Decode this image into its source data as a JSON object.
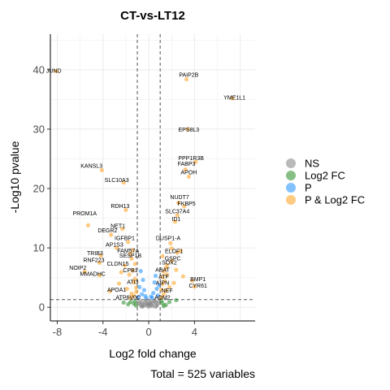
{
  "chart_data": {
    "type": "scatter",
    "title": "CT-vs-LT12",
    "xlabel": "Log2 fold change",
    "ylabel": "-Log10 pvalue",
    "caption": "Total = 525 variables",
    "xlim": [
      -8.6,
      9.3
    ],
    "ylim": [
      -2.3,
      46.0
    ],
    "xticks": [
      -8,
      -4,
      0,
      4
    ],
    "yticks": [
      0,
      10,
      20,
      30,
      40
    ],
    "fc_cutoff": [
      -1,
      1
    ],
    "p_cutoff": 1.3,
    "grid": true,
    "legend_position": "right",
    "legend": [
      {
        "key": "NS",
        "label": "NS",
        "color": "#808080"
      },
      {
        "key": "L2",
        "label": "Log2 FC",
        "color": "#228B22"
      },
      {
        "key": "P",
        "label": "P",
        "color": "#1E90FF"
      },
      {
        "key": "PL",
        "label": "P & Log2 FC",
        "color": "#FF9F1C"
      }
    ],
    "labels": [
      {
        "text": "JUND",
        "x": -8.3,
        "y": 39.5
      },
      {
        "text": "PAIP2B",
        "x": 3.5,
        "y": 38.8
      },
      {
        "text": "YME1L1",
        "x": 7.5,
        "y": 35.0
      },
      {
        "text": "EPS8L3",
        "x": 3.5,
        "y": 29.6
      },
      {
        "text": "PPP1R3B",
        "x": 3.7,
        "y": 24.8
      },
      {
        "text": "FABP3",
        "x": 3.3,
        "y": 23.8
      },
      {
        "text": "KANSL3",
        "x": -5.0,
        "y": 23.5
      },
      {
        "text": "APOH",
        "x": 3.5,
        "y": 22.4
      },
      {
        "text": "SLC10A3",
        "x": -2.8,
        "y": 21.1
      },
      {
        "text": "NUDT7",
        "x": 2.7,
        "y": 18.2
      },
      {
        "text": "FKBP5",
        "x": 3.3,
        "y": 17.1
      },
      {
        "text": "RDH13",
        "x": -2.5,
        "y": 16.7
      },
      {
        "text": "SLC37A4",
        "x": 2.5,
        "y": 15.8
      },
      {
        "text": "PROM1A",
        "x": -5.6,
        "y": 15.5
      },
      {
        "text": "ID1",
        "x": 2.4,
        "y": 14.5
      },
      {
        "text": "NET1",
        "x": -2.7,
        "y": 13.4
      },
      {
        "text": "DEGR2",
        "x": -3.6,
        "y": 12.6
      },
      {
        "text": "IGFBP1",
        "x": -2.1,
        "y": 11.3
      },
      {
        "text": "DUSP1-A",
        "x": 1.7,
        "y": 11.3
      },
      {
        "text": "AP1S3",
        "x": -3.0,
        "y": 10.2
      },
      {
        "text": "FAM57A",
        "x": -1.8,
        "y": 9.2
      },
      {
        "text": "ELOF1",
        "x": 2.2,
        "y": 9.1
      },
      {
        "text": "TRIB3",
        "x": -4.7,
        "y": 8.8
      },
      {
        "text": "SESP1B",
        "x": -1.6,
        "y": 8.4
      },
      {
        "text": "GSPC",
        "x": 2.1,
        "y": 7.9
      },
      {
        "text": "RNF223",
        "x": -4.8,
        "y": 7.6
      },
      {
        "text": "SOX2",
        "x": 1.8,
        "y": 7.2
      },
      {
        "text": "CLDN15",
        "x": -2.7,
        "y": 7.0
      },
      {
        "text": "NOIP2",
        "x": -6.2,
        "y": 6.3
      },
      {
        "text": "CPB1",
        "x": -1.6,
        "y": 5.9
      },
      {
        "text": "ABAT",
        "x": 1.2,
        "y": 6.0
      },
      {
        "text": "MMADHC",
        "x": -4.9,
        "y": 5.3
      },
      {
        "text": "ATF",
        "x": 1.3,
        "y": 4.8
      },
      {
        "text": "BMP1",
        "x": 4.3,
        "y": 4.4
      },
      {
        "text": "ATI3",
        "x": -1.4,
        "y": 3.9
      },
      {
        "text": "AIPN",
        "x": 1.2,
        "y": 3.8
      },
      {
        "text": "CYR61",
        "x": 4.3,
        "y": 3.3
      },
      {
        "text": "APOA1",
        "x": -2.8,
        "y": 2.6
      },
      {
        "text": "NEF",
        "x": 1.6,
        "y": 2.5
      },
      {
        "text": "ATP6V0C",
        "x": -1.8,
        "y": 1.3
      },
      {
        "text": "ADM2",
        "x": 1.2,
        "y": 1.3
      }
    ],
    "points": [
      {
        "x": -8.1,
        "y": 39.8,
        "c": "PL"
      },
      {
        "x": 3.3,
        "y": 38.4,
        "c": "PL"
      },
      {
        "x": 7.3,
        "y": 35.2,
        "c": "PL"
      },
      {
        "x": 3.4,
        "y": 30.0,
        "c": "PL"
      },
      {
        "x": 4.1,
        "y": 24.5,
        "c": "PL"
      },
      {
        "x": 3.2,
        "y": 23.2,
        "c": "PL"
      },
      {
        "x": -4.1,
        "y": 23.1,
        "c": "PL"
      },
      {
        "x": 3.5,
        "y": 22.0,
        "c": "PL"
      },
      {
        "x": -2.2,
        "y": 21.0,
        "c": "PL"
      },
      {
        "x": 2.6,
        "y": 17.6,
        "c": "PL"
      },
      {
        "x": 3.1,
        "y": 17.0,
        "c": "PL"
      },
      {
        "x": -2.0,
        "y": 16.4,
        "c": "PL"
      },
      {
        "x": 2.5,
        "y": 15.5,
        "c": "PL"
      },
      {
        "x": -5.3,
        "y": 13.8,
        "c": "PL"
      },
      {
        "x": 2.3,
        "y": 14.4,
        "c": "PL"
      },
      {
        "x": -2.3,
        "y": 13.2,
        "c": "PL"
      },
      {
        "x": -3.3,
        "y": 12.2,
        "c": "PL"
      },
      {
        "x": -1.8,
        "y": 11.0,
        "c": "PL"
      },
      {
        "x": 1.9,
        "y": 10.8,
        "c": "PL"
      },
      {
        "x": -2.8,
        "y": 10.0,
        "c": "PL"
      },
      {
        "x": 2.0,
        "y": 9.9,
        "c": "PL"
      },
      {
        "x": 2.5,
        "y": 9.2,
        "c": "PL"
      },
      {
        "x": -1.6,
        "y": 9.0,
        "c": "PL"
      },
      {
        "x": -4.2,
        "y": 8.7,
        "c": "PL"
      },
      {
        "x": 2.8,
        "y": 9.5,
        "c": "PL"
      },
      {
        "x": -1.5,
        "y": 8.2,
        "c": "PL"
      },
      {
        "x": 2.0,
        "y": 7.8,
        "c": "PL"
      },
      {
        "x": -4.3,
        "y": 7.5,
        "c": "PL"
      },
      {
        "x": 1.6,
        "y": 7.1,
        "c": "PL"
      },
      {
        "x": -2.1,
        "y": 7.0,
        "c": "PL"
      },
      {
        "x": -5.6,
        "y": 6.0,
        "c": "PL"
      },
      {
        "x": -1.4,
        "y": 6.2,
        "c": "PL"
      },
      {
        "x": 1.3,
        "y": 6.0,
        "c": "PL"
      },
      {
        "x": -4.3,
        "y": 5.4,
        "c": "PL"
      },
      {
        "x": 1.2,
        "y": 5.1,
        "c": "PL"
      },
      {
        "x": 3.8,
        "y": 4.5,
        "c": "PL"
      },
      {
        "x": -1.3,
        "y": 4.2,
        "c": "PL"
      },
      {
        "x": 1.2,
        "y": 3.9,
        "c": "PL"
      },
      {
        "x": 4.0,
        "y": 3.5,
        "c": "PL"
      },
      {
        "x": -3.4,
        "y": 2.7,
        "c": "PL"
      },
      {
        "x": 1.5,
        "y": 2.8,
        "c": "PL"
      },
      {
        "x": -1.6,
        "y": 1.6,
        "c": "PL"
      },
      {
        "x": 1.1,
        "y": 1.6,
        "c": "PL"
      },
      {
        "x": -1.2,
        "y": 4.8,
        "c": "PL"
      },
      {
        "x": -1.1,
        "y": 3.3,
        "c": "PL"
      },
      {
        "x": -1.5,
        "y": 2.3,
        "c": "PL"
      },
      {
        "x": -1.3,
        "y": 1.9,
        "c": "PL"
      },
      {
        "x": -1.9,
        "y": 3.1,
        "c": "PL"
      },
      {
        "x": -1.7,
        "y": 5.5,
        "c": "PL"
      },
      {
        "x": -2.4,
        "y": 5.9,
        "c": "PL"
      },
      {
        "x": -1.2,
        "y": 7.3,
        "c": "PL"
      },
      {
        "x": -1.1,
        "y": 2.6,
        "c": "PL"
      },
      {
        "x": 1.4,
        "y": 4.4,
        "c": "PL"
      },
      {
        "x": 1.6,
        "y": 5.5,
        "c": "PL"
      },
      {
        "x": 1.3,
        "y": 2.2,
        "c": "PL"
      },
      {
        "x": 1.8,
        "y": 3.4,
        "c": "PL"
      },
      {
        "x": 2.2,
        "y": 4.1,
        "c": "PL"
      },
      {
        "x": 1.5,
        "y": 6.6,
        "c": "PL"
      },
      {
        "x": 2.4,
        "y": 6.3,
        "c": "PL"
      },
      {
        "x": 3.0,
        "y": 5.2,
        "c": "PL"
      },
      {
        "x": 1.2,
        "y": 8.6,
        "c": "PL"
      },
      {
        "x": 1.1,
        "y": 3.0,
        "c": "PL"
      },
      {
        "x": -1.4,
        "y": 9.6,
        "c": "PL"
      },
      {
        "x": -2.6,
        "y": 4.0,
        "c": "PL"
      },
      {
        "x": -0.7,
        "y": 6.1,
        "c": "P"
      },
      {
        "x": -0.5,
        "y": 4.6,
        "c": "P"
      },
      {
        "x": -0.8,
        "y": 3.4,
        "c": "P"
      },
      {
        "x": -0.4,
        "y": 2.9,
        "c": "P"
      },
      {
        "x": -0.6,
        "y": 2.2,
        "c": "P"
      },
      {
        "x": -0.3,
        "y": 1.9,
        "c": "P"
      },
      {
        "x": -0.9,
        "y": 1.7,
        "c": "P"
      },
      {
        "x": 0.5,
        "y": 4.2,
        "c": "P"
      },
      {
        "x": 0.7,
        "y": 3.1,
        "c": "P"
      },
      {
        "x": 0.4,
        "y": 2.4,
        "c": "P"
      },
      {
        "x": 0.8,
        "y": 2.0,
        "c": "P"
      },
      {
        "x": 0.3,
        "y": 1.6,
        "c": "P"
      },
      {
        "x": 0.6,
        "y": 5.3,
        "c": "P"
      },
      {
        "x": 0.9,
        "y": 3.7,
        "c": "P"
      },
      {
        "x": -0.2,
        "y": 1.5,
        "c": "P"
      },
      {
        "x": 0.2,
        "y": 1.8,
        "c": "P"
      },
      {
        "x": -1.6,
        "y": 0.9,
        "c": "L2"
      },
      {
        "x": -1.3,
        "y": 0.6,
        "c": "L2"
      },
      {
        "x": -1.1,
        "y": 0.3,
        "c": "L2"
      },
      {
        "x": -1.8,
        "y": 0.5,
        "c": "L2"
      },
      {
        "x": -1.2,
        "y": 1.0,
        "c": "L2"
      },
      {
        "x": 1.2,
        "y": 0.7,
        "c": "L2"
      },
      {
        "x": 1.5,
        "y": 0.4,
        "c": "L2"
      },
      {
        "x": 1.1,
        "y": 1.1,
        "c": "L2"
      },
      {
        "x": 1.8,
        "y": 0.9,
        "c": "L2"
      },
      {
        "x": 2.4,
        "y": 1.2,
        "c": "L2"
      },
      {
        "x": -2.2,
        "y": 0.8,
        "c": "L2"
      },
      {
        "x": 1.3,
        "y": 0.2,
        "c": "L2"
      },
      {
        "x": -0.6,
        "y": 0.8,
        "c": "NS"
      },
      {
        "x": -0.4,
        "y": 0.5,
        "c": "NS"
      },
      {
        "x": -0.2,
        "y": 0.3,
        "c": "NS"
      },
      {
        "x": 0.0,
        "y": 0.1,
        "c": "NS"
      },
      {
        "x": 0.2,
        "y": 0.4,
        "c": "NS"
      },
      {
        "x": 0.4,
        "y": 0.7,
        "c": "NS"
      },
      {
        "x": 0.6,
        "y": 0.9,
        "c": "NS"
      },
      {
        "x": -0.8,
        "y": 1.0,
        "c": "NS"
      },
      {
        "x": 0.8,
        "y": 0.6,
        "c": "NS"
      },
      {
        "x": -0.3,
        "y": 0.9,
        "c": "NS"
      },
      {
        "x": 0.1,
        "y": 0.8,
        "c": "NS"
      },
      {
        "x": 0.3,
        "y": 0.2,
        "c": "NS"
      },
      {
        "x": -0.5,
        "y": 0.2,
        "c": "NS"
      },
      {
        "x": -0.1,
        "y": 0.6,
        "c": "NS"
      },
      {
        "x": 0.5,
        "y": 1.1,
        "c": "NS"
      },
      {
        "x": -0.7,
        "y": 0.4,
        "c": "NS"
      },
      {
        "x": 0.7,
        "y": 0.3,
        "c": "NS"
      },
      {
        "x": -0.9,
        "y": 0.6,
        "c": "NS"
      },
      {
        "x": 0.9,
        "y": 1.0,
        "c": "NS"
      },
      {
        "x": -0.2,
        "y": 1.2,
        "c": "NS"
      },
      {
        "x": 0.2,
        "y": 1.0,
        "c": "NS"
      },
      {
        "x": -0.6,
        "y": 0.1,
        "c": "NS"
      },
      {
        "x": 0.6,
        "y": 0.1,
        "c": "NS"
      },
      {
        "x": 0.0,
        "y": 0.5,
        "c": "NS"
      }
    ]
  }
}
